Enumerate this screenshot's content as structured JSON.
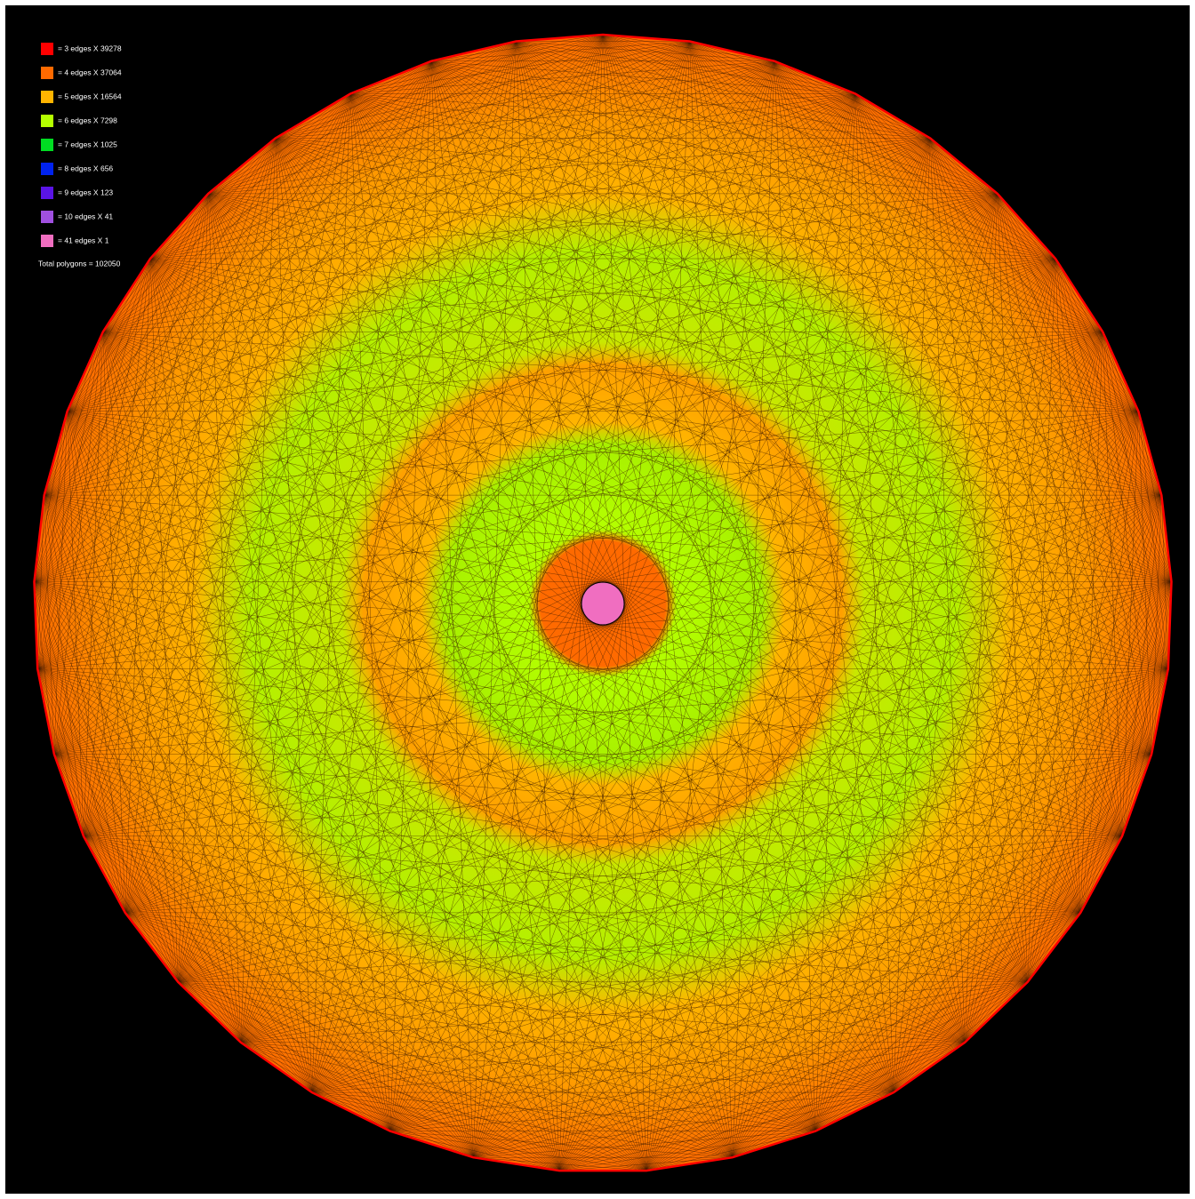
{
  "legend": {
    "items": [
      {
        "text": "= 3 edges X 39278",
        "color": "#ff0000"
      },
      {
        "text": "= 4 edges X 37064",
        "color": "#ff6a00"
      },
      {
        "text": "= 5 edges X 16564",
        "color": "#ffb400"
      },
      {
        "text": "= 6 edges X 7298",
        "color": "#b4ff00"
      },
      {
        "text": "= 7 edges X 1025",
        "color": "#00dd22"
      },
      {
        "text": "= 8 edges X 656",
        "color": "#0022ee"
      },
      {
        "text": "= 9 edges X 123",
        "color": "#5a14e6"
      },
      {
        "text": "= 10 edges X 41",
        "color": "#a050e0"
      },
      {
        "text": "= 41 edges X 1",
        "color": "#f06ec0"
      }
    ],
    "total": "Total polygons = 102050"
  }
}
